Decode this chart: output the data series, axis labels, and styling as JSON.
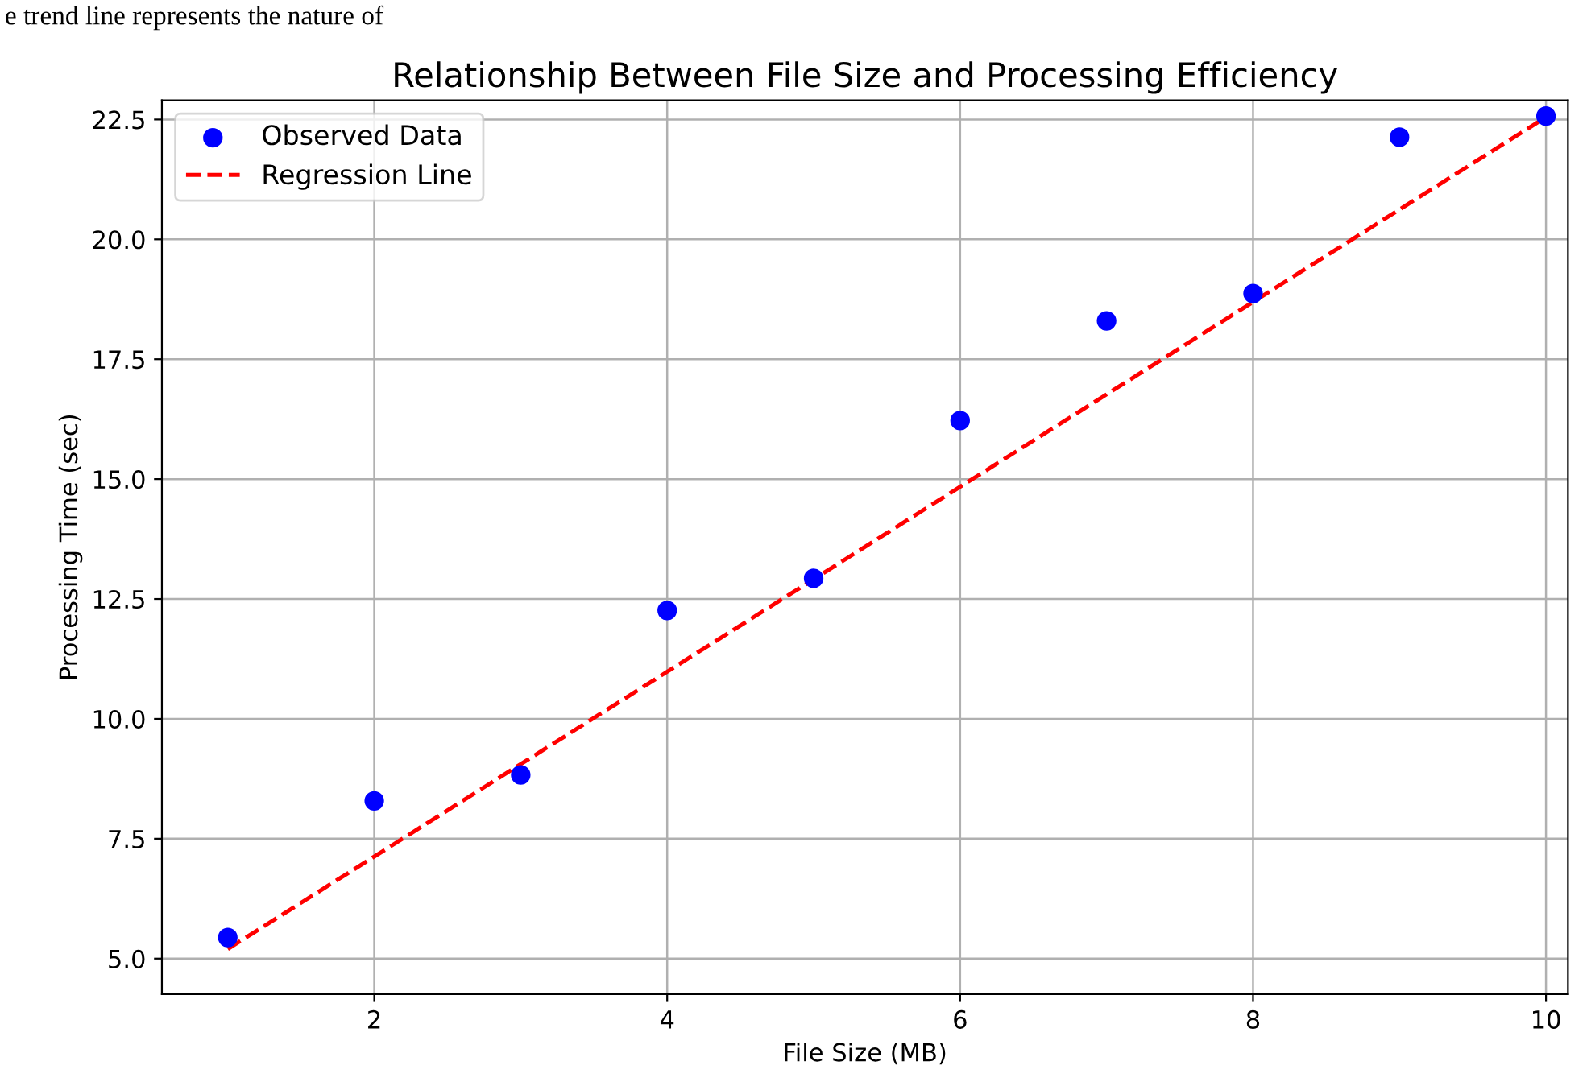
{
  "chart_data": {
    "type": "scatter",
    "title": "Relationship Between File Size and Processing Efficiency",
    "xlabel": "File Size (MB)",
    "ylabel": "Processing Time (sec)",
    "x": [
      1,
      2,
      3,
      4,
      5,
      6,
      7,
      8,
      9,
      10
    ],
    "series": [
      {
        "name": "Observed Data",
        "color": "#0000ff",
        "marker": "circle",
        "values": [
          5.44,
          8.29,
          8.83,
          12.26,
          12.93,
          16.22,
          18.3,
          18.87,
          22.13,
          22.57
        ]
      },
      {
        "name": "Regression Line",
        "type": "line",
        "color": "#ff0000",
        "line_style": "dashed",
        "marker": "none",
        "x": [
          1,
          10
        ],
        "values": [
          5.2,
          22.55
        ]
      }
    ],
    "xlim": [
      0.55,
      10.15
    ],
    "ylim": [
      4.26,
      22.9
    ],
    "xticks": [
      2,
      4,
      6,
      8,
      10
    ],
    "yticks": [
      {
        "value": 5,
        "label": "5.0"
      },
      7.5,
      {
        "value": 10,
        "label": "10.0"
      },
      12.5,
      {
        "value": 15,
        "label": "15.0"
      },
      17.5,
      {
        "value": 20,
        "label": "20.0"
      },
      22.5
    ],
    "grid": true,
    "legend": "top left",
    "annotations": [
      "e trend line represents the nature of"
    ]
  }
}
